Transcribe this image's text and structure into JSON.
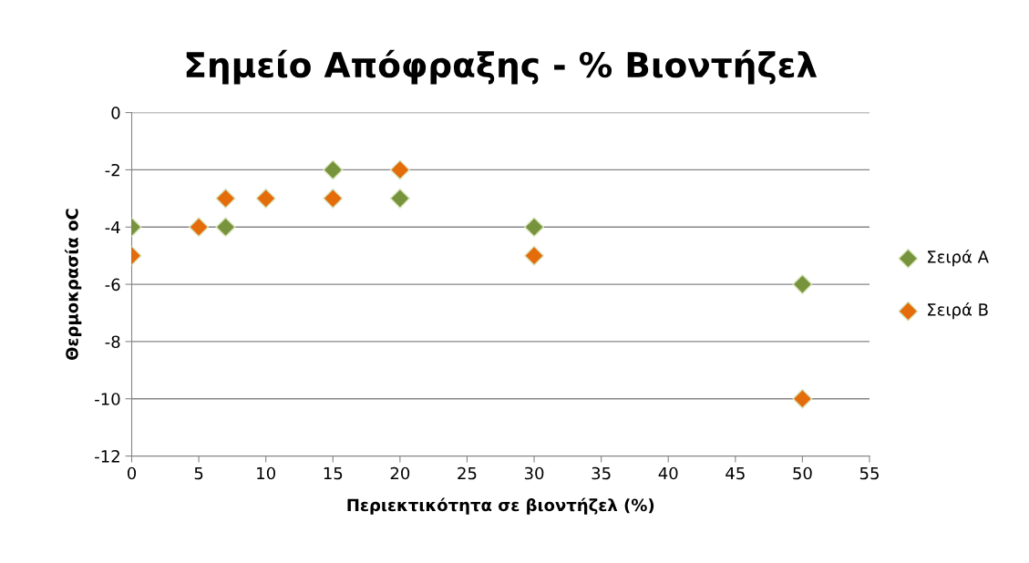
{
  "chart_data": {
    "type": "scatter",
    "title": "Σημείο Απόφραξης - % Βιοντήζελ",
    "xlabel": "Περιεκτικότητα σε βιοντήζελ (%)",
    "ylabel": "Θερμοκρασία oC",
    "series": [
      {
        "name": "Σειρά A",
        "color": "#77933c",
        "x": [
          0,
          7,
          15,
          20,
          30,
          50
        ],
        "values": [
          -4,
          -4,
          -2,
          -3,
          -4,
          -6
        ]
      },
      {
        "name": "Σειρά B",
        "color": "#e46c0a",
        "x": [
          0,
          5,
          7,
          10,
          15,
          20,
          30,
          50
        ],
        "values": [
          -5,
          -4,
          -3,
          -3,
          -3,
          -2,
          -5,
          -10
        ]
      }
    ],
    "xlim": [
      0,
      55
    ],
    "xticks": [
      0,
      5,
      10,
      15,
      20,
      25,
      30,
      35,
      40,
      45,
      50,
      55
    ],
    "ylim": [
      -12,
      0
    ],
    "yticks": [
      -12,
      -10,
      -8,
      -6,
      -4,
      -2,
      0
    ],
    "grid": "y",
    "legend": "right",
    "marker": "diamond"
  }
}
